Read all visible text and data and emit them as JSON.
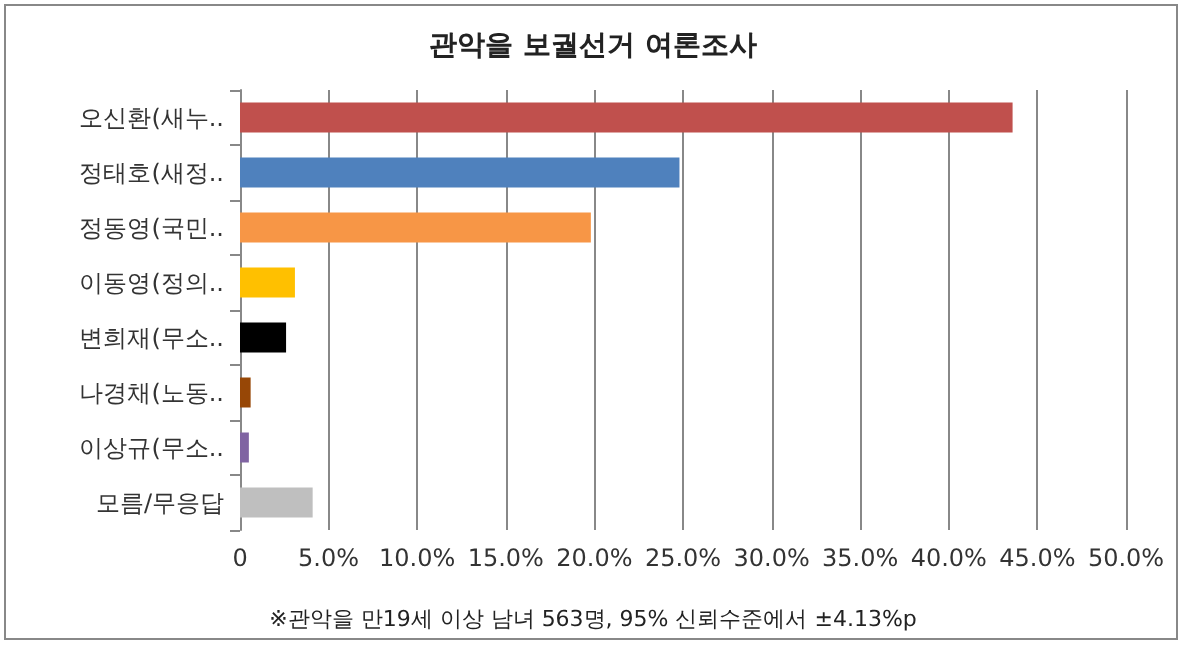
{
  "chart_data": {
    "type": "bar",
    "orientation": "horizontal",
    "title": "관악을 보궐선거 여론조사",
    "categories": [
      "오신환(새누..",
      "정태호(새정..",
      "정동영(국민..",
      "이동영(정의..",
      "변희재(무소..",
      "나경채(노동..",
      "이상규(무소..",
      "모름/무응답"
    ],
    "values": [
      43.6,
      24.8,
      19.8,
      3.1,
      2.6,
      0.6,
      0.5,
      4.1
    ],
    "colors": [
      "#c0504d",
      "#4f81bd",
      "#f79646",
      "#ffc000",
      "#000000",
      "#974706",
      "#8064a2",
      "#bfbfbf"
    ],
    "xlim": [
      0,
      50
    ],
    "xticks": [
      {
        "value": 0,
        "label": "0"
      },
      {
        "value": 5,
        "label": "5.0%"
      },
      {
        "value": 10,
        "label": "10.0%"
      },
      {
        "value": 15,
        "label": "15.0%"
      },
      {
        "value": 20,
        "label": "20.0%"
      },
      {
        "value": 25,
        "label": "25.0%"
      },
      {
        "value": 30,
        "label": "30.0%"
      },
      {
        "value": 35,
        "label": "35.0%"
      },
      {
        "value": 40,
        "label": "40.0%"
      },
      {
        "value": 45,
        "label": "45.0%"
      },
      {
        "value": 50,
        "label": "50.0%"
      }
    ],
    "grid": "x",
    "annotations": [
      "※관악을 만19세 이상 남녀 563명, 95% 신뢰수준에서 ±4.13%p"
    ]
  }
}
